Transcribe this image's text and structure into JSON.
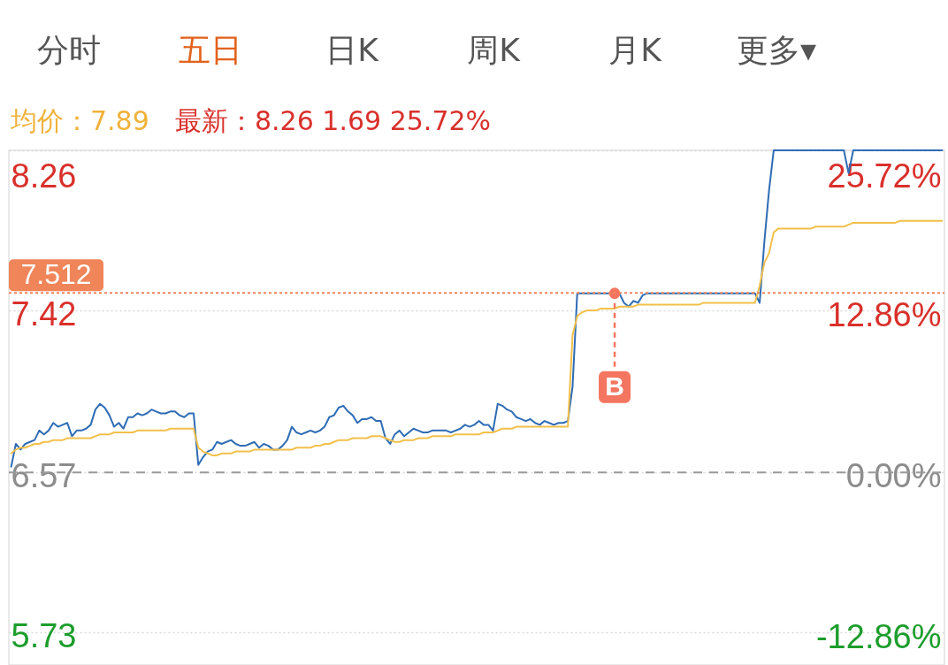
{
  "chart_data": {
    "type": "line",
    "title": "均价：7.89",
    "subtitle": "最新：8.26 1.69 25.72%",
    "annotations": [
      "分时",
      "五日",
      "日K",
      "周K",
      "月K",
      "更多▾"
    ],
    "categories": [
      null,
      null,
      null,
      null,
      null,
      null,
      null,
      null,
      null,
      null,
      null,
      null,
      null,
      null,
      null,
      null,
      null,
      null,
      null,
      null,
      null,
      null,
      null,
      null,
      null,
      null,
      null,
      null,
      null,
      null,
      null,
      null,
      null,
      null,
      null,
      null,
      null,
      null,
      null,
      null,
      null,
      null,
      null,
      null,
      null,
      null,
      null,
      null,
      null,
      null,
      null,
      null,
      null,
      null,
      null,
      null,
      null,
      null,
      null,
      null,
      null,
      null,
      null,
      null,
      null,
      null,
      null,
      null,
      null,
      null,
      null,
      null,
      null,
      null,
      null,
      null,
      null,
      null,
      null,
      null,
      null,
      null,
      null,
      null,
      null,
      null,
      null,
      null,
      null,
      null,
      null,
      null,
      null,
      null,
      null,
      null,
      null,
      null,
      null,
      null,
      null,
      null,
      null,
      null,
      null,
      null,
      null,
      null,
      null,
      null,
      null,
      null,
      null,
      null,
      null,
      null,
      null,
      null,
      null,
      null,
      null,
      null,
      null,
      null,
      null,
      null,
      null,
      null,
      null,
      null,
      null,
      null,
      null,
      null,
      null,
      null,
      null,
      null,
      null,
      null,
      null,
      null,
      null,
      null,
      null,
      null,
      null,
      null,
      null,
      null,
      null,
      null,
      null,
      null,
      null,
      null,
      null,
      null,
      null,
      null,
      null,
      null,
      null,
      null,
      null,
      null,
      null,
      null,
      null,
      null,
      null,
      null,
      null,
      null,
      null,
      null,
      null,
      null,
      null,
      null,
      null,
      null,
      null,
      null,
      null,
      null,
      null,
      null,
      null,
      null,
      null,
      null,
      null,
      null,
      null,
      null,
      null,
      null,
      null,
      null
    ],
    "series": [
      {
        "color": "#2e6cb4",
        "values": [
          6.6,
          6.72,
          6.69,
          6.72,
          6.73,
          6.74,
          6.79,
          6.77,
          6.79,
          6.83,
          6.81,
          6.82,
          6.83,
          6.76,
          6.79,
          6.79,
          6.8,
          6.82,
          6.9,
          6.93,
          6.91,
          6.87,
          6.81,
          6.83,
          6.8,
          6.86,
          6.86,
          6.88,
          6.87,
          6.88,
          6.9,
          6.89,
          6.88,
          6.88,
          6.89,
          6.89,
          6.87,
          6.86,
          6.88,
          6.88,
          6.61,
          6.65,
          6.68,
          6.69,
          6.73,
          6.72,
          6.73,
          6.74,
          6.72,
          6.71,
          6.71,
          6.72,
          6.73,
          6.7,
          6.72,
          6.71,
          6.69,
          6.69,
          6.71,
          6.74,
          6.81,
          6.78,
          6.77,
          6.78,
          6.79,
          6.78,
          6.79,
          6.81,
          6.86,
          6.87,
          6.91,
          6.92,
          6.89,
          6.87,
          6.83,
          6.85,
          6.85,
          6.86,
          6.84,
          6.84,
          6.75,
          6.72,
          6.77,
          6.79,
          6.76,
          6.78,
          6.8,
          6.79,
          6.78,
          6.78,
          6.79,
          6.79,
          6.79,
          6.79,
          6.78,
          6.79,
          6.8,
          6.82,
          6.81,
          6.82,
          6.84,
          6.82,
          6.82,
          6.79,
          6.93,
          6.92,
          6.9,
          6.89,
          6.86,
          6.85,
          6.84,
          6.85,
          6.83,
          6.82,
          6.84,
          6.83,
          6.82,
          6.83,
          6.83,
          6.84,
          7.02,
          7.51,
          7.51,
          7.51,
          7.51,
          7.51,
          7.51,
          7.51,
          7.51,
          7.51,
          7.51,
          7.46,
          7.44,
          7.47,
          7.46,
          7.5,
          7.51,
          7.51,
          7.51,
          7.51,
          7.51,
          7.51,
          7.51,
          7.51,
          7.51,
          7.51,
          7.51,
          7.51,
          7.51,
          7.51,
          7.51,
          7.51,
          7.51,
          7.51,
          7.51,
          7.51,
          7.51,
          7.51,
          7.51,
          7.51,
          7.46,
          7.78,
          8.05,
          8.26,
          8.26,
          8.26,
          8.26,
          8.26,
          8.26,
          8.26,
          8.26,
          8.26,
          8.26,
          8.26,
          8.26,
          8.26,
          8.26,
          8.26,
          8.26,
          8.14,
          8.26,
          8.26,
          8.26,
          8.26,
          8.26,
          8.26,
          8.26,
          8.26,
          8.26,
          8.26,
          8.26,
          8.26,
          8.26,
          8.26,
          8.26,
          8.26,
          8.26,
          8.26,
          8.26,
          8.26
        ]
      },
      {
        "color": "#f2c04a",
        "values": [
          6.67,
          6.69,
          6.7,
          6.7,
          6.71,
          6.72,
          6.72,
          6.73,
          6.73,
          6.74,
          6.74,
          6.74,
          6.75,
          6.75,
          6.75,
          6.75,
          6.75,
          6.75,
          6.76,
          6.77,
          6.77,
          6.77,
          6.78,
          6.78,
          6.78,
          6.78,
          6.78,
          6.79,
          6.79,
          6.79,
          6.79,
          6.79,
          6.79,
          6.79,
          6.8,
          6.8,
          6.8,
          6.8,
          6.8,
          6.8,
          6.7,
          6.68,
          6.67,
          6.66,
          6.66,
          6.67,
          6.67,
          6.67,
          6.68,
          6.68,
          6.68,
          6.68,
          6.69,
          6.69,
          6.69,
          6.69,
          6.69,
          6.69,
          6.69,
          6.69,
          6.69,
          6.7,
          6.7,
          6.7,
          6.7,
          6.71,
          6.71,
          6.72,
          6.72,
          6.73,
          6.74,
          6.74,
          6.74,
          6.75,
          6.75,
          6.75,
          6.75,
          6.76,
          6.76,
          6.76,
          6.75,
          6.74,
          6.73,
          6.73,
          6.74,
          6.74,
          6.74,
          6.75,
          6.75,
          6.75,
          6.76,
          6.76,
          6.76,
          6.76,
          6.76,
          6.77,
          6.77,
          6.77,
          6.77,
          6.77,
          6.77,
          6.78,
          6.78,
          6.78,
          6.79,
          6.8,
          6.8,
          6.8,
          6.81,
          6.81,
          6.81,
          6.81,
          6.81,
          6.81,
          6.81,
          6.81,
          6.81,
          6.81,
          6.81,
          6.81,
          7.29,
          7.39,
          7.41,
          7.42,
          7.42,
          7.42,
          7.43,
          7.43,
          7.43,
          7.43,
          7.44,
          7.44,
          7.44,
          7.44,
          7.45,
          7.45,
          7.45,
          7.45,
          7.45,
          7.45,
          7.45,
          7.45,
          7.45,
          7.45,
          7.45,
          7.45,
          7.45,
          7.45,
          7.46,
          7.46,
          7.46,
          7.46,
          7.46,
          7.46,
          7.46,
          7.46,
          7.46,
          7.46,
          7.46,
          7.46,
          7.55,
          7.67,
          7.72,
          7.83,
          7.85,
          7.85,
          7.85,
          7.85,
          7.85,
          7.85,
          7.85,
          7.85,
          7.86,
          7.86,
          7.86,
          7.86,
          7.86,
          7.86,
          7.86,
          7.87,
          7.88,
          7.88,
          7.88,
          7.88,
          7.88,
          7.88,
          7.88,
          7.88,
          7.88,
          7.88,
          7.89,
          7.89,
          7.89,
          7.89,
          7.89,
          7.89,
          7.89,
          7.89,
          7.89,
          7.89
        ]
      },
      {
        "name": "B",
        "type": "scatter",
        "color": "#f47560",
        "values": [
          null,
          null,
          null,
          null,
          null,
          null,
          null,
          null,
          null,
          null,
          null,
          null,
          null,
          null,
          null,
          null,
          null,
          null,
          null,
          null,
          null,
          null,
          null,
          null,
          null,
          null,
          null,
          null,
          null,
          null,
          null,
          null,
          null,
          null,
          null,
          null,
          null,
          null,
          null,
          null,
          null,
          null,
          null,
          null,
          null,
          null,
          null,
          null,
          null,
          null,
          null,
          null,
          null,
          null,
          null,
          null,
          null,
          null,
          null,
          null,
          null,
          null,
          null,
          null,
          null,
          null,
          null,
          null,
          null,
          null,
          null,
          null,
          null,
          null,
          null,
          null,
          null,
          null,
          null,
          null,
          null,
          null,
          null,
          null,
          null,
          null,
          null,
          null,
          null,
          null,
          null,
          null,
          null,
          null,
          null,
          null,
          null,
          null,
          null,
          null,
          null,
          null,
          null,
          null,
          null,
          null,
          null,
          null,
          null,
          null,
          null,
          null,
          null,
          null,
          null,
          null,
          null,
          null,
          null,
          null,
          null,
          null,
          null,
          null,
          null,
          null,
          null,
          null,
          null,
          7.51,
          null,
          null,
          null,
          null,
          null,
          null,
          null,
          null,
          null,
          null,
          null,
          null,
          null,
          null,
          null,
          null,
          null,
          null,
          null,
          null,
          null,
          null,
          null,
          null,
          null,
          null,
          null,
          null,
          null,
          null,
          null,
          null,
          null,
          null,
          null,
          null,
          null,
          null,
          null,
          null,
          null,
          null,
          null,
          null,
          null,
          null,
          null,
          null,
          null,
          null,
          null,
          null,
          null,
          null,
          null,
          null,
          null,
          null,
          null,
          null,
          null,
          null,
          null,
          null,
          null,
          null,
          null,
          null,
          null,
          null
        ]
      }
    ],
    "ylim": [
      5.56,
      8.26
    ],
    "yticks": [
      5.73,
      6.57,
      7.42,
      8.26
    ],
    "y2lim": [
      -15.37,
      25.72
    ],
    "y2ticks": [
      {
        "value": -12.86,
        "label": "-12.86%"
      },
      {
        "value": 0,
        "label": "0.00%"
      },
      {
        "value": 12.86,
        "label": "12.86%"
      },
      {
        "value": 25.72,
        "label": "25.72%"
      }
    ],
    "ref_lines": [
      {
        "axis": "y2",
        "value": 0,
        "color": "#9a9a9a",
        "line_style": "dashed"
      },
      {
        "axis": "y",
        "value": 7.512,
        "label": "7.512",
        "color": "#f0855a",
        "line_style": "dotted"
      }
    ],
    "tick_labels": "y",
    "grid": "y"
  }
}
